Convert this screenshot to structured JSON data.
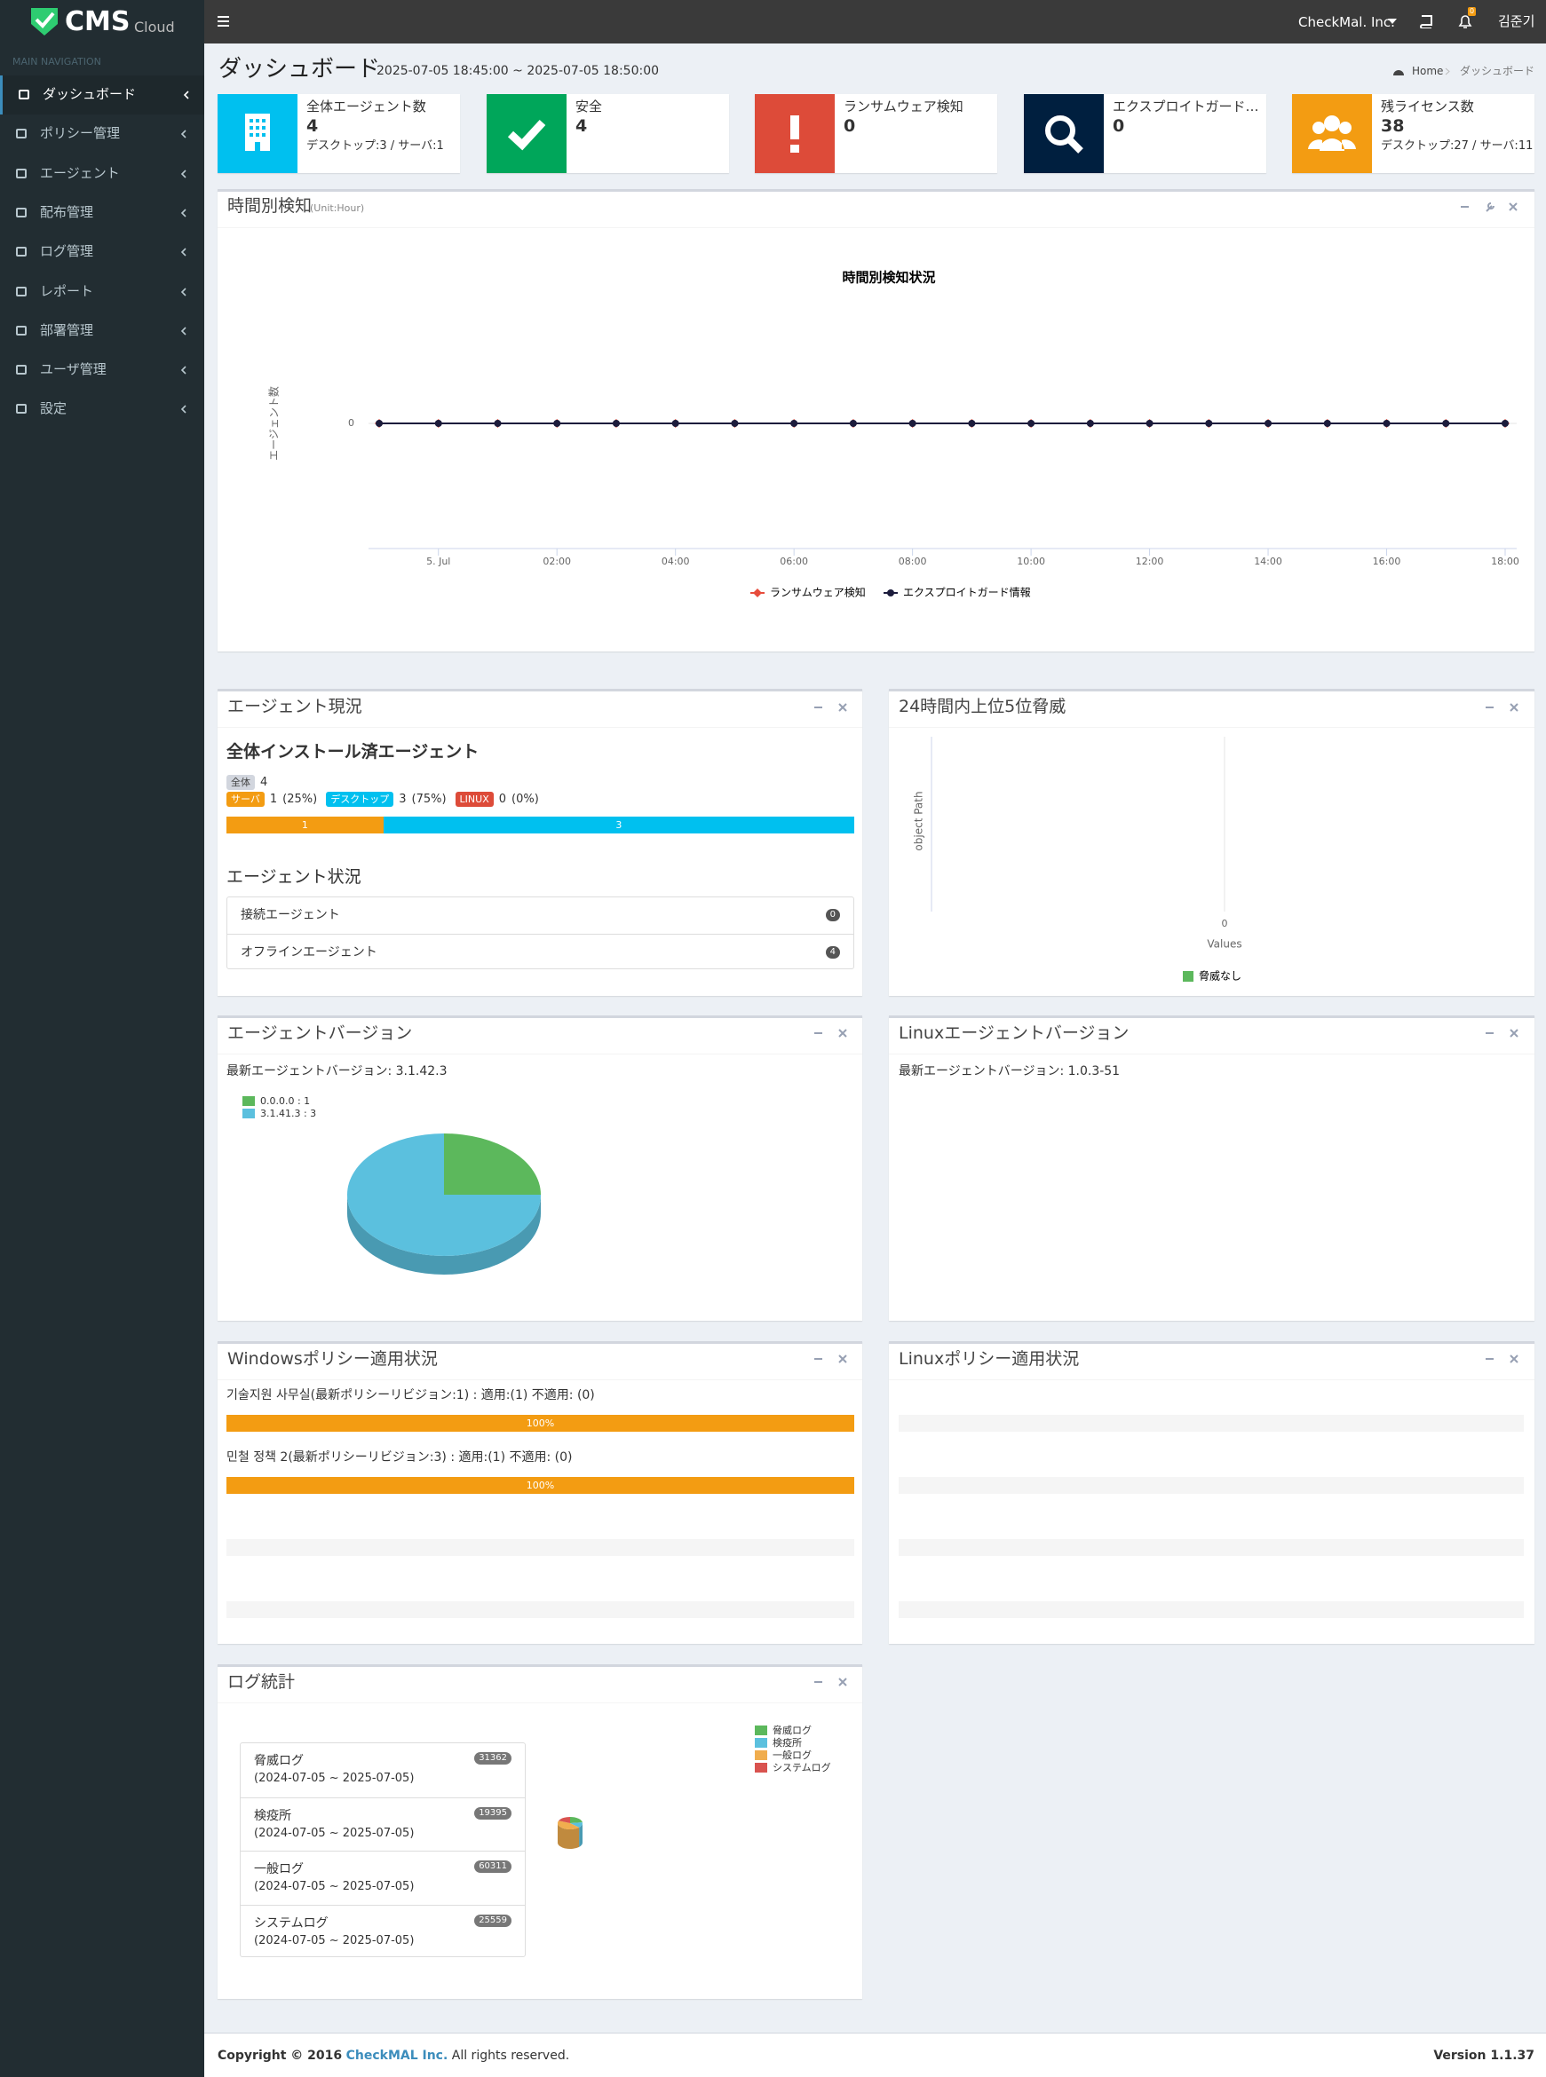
{
  "header": {
    "logo": "CMS",
    "logo_sub": "Cloud",
    "company": "CheckMal. Inc.",
    "notifications": "0",
    "user": "김준기"
  },
  "sidebar": {
    "label": "MAIN NAVIGATION",
    "items": [
      "ダッシュボード",
      "ポリシー管理",
      "エージェント",
      "配布管理",
      "ログ管理",
      "レポート",
      "部署管理",
      "ユーザ管理",
      "設定"
    ]
  },
  "page": {
    "title": "ダッシュボード",
    "period": "2025-07-05 18:45:00 ~ 2025-07-05 18:50:00",
    "breadcrumb": [
      "Home",
      "ダッシュボード"
    ]
  },
  "info_boxes": [
    {
      "label": "全体エージェント数",
      "value": 4,
      "detail": "デスクトップ:3 / サーバ:1"
    },
    {
      "label": "安全",
      "value": 4
    },
    {
      "label": "ランサムウェア検知",
      "value": 0
    },
    {
      "label": "エクスプロイトガード…",
      "value": 0
    },
    {
      "label": "残ライセンス数",
      "value": 38,
      "detail": "デスクトップ:27 / サーバ:11"
    }
  ],
  "hourly": {
    "title": "時間別検知",
    "unit": "(Unit:Hour)"
  },
  "agent_status": {
    "title": "エージェント現況",
    "subtitle": "全体インストール済エージェント",
    "total_label": "全体",
    "total": 4,
    "types": [
      {
        "label": "サーバ",
        "count": 1,
        "percent": "(25%)",
        "color": "#f39c12"
      },
      {
        "label": "デスクトップ",
        "count": 3,
        "percent": "(75%)",
        "color": "#00c0ef"
      },
      {
        "label": "LINUX",
        "count": 0,
        "percent": "(0%)",
        "color": "#dd4b39"
      }
    ],
    "status_title": "エージェント状況",
    "status": [
      {
        "label": "接続エージェント",
        "count": 0
      },
      {
        "label": "オフラインエージェント",
        "count": 4
      }
    ]
  },
  "threats": {
    "title": "24時間内上位5位脅威"
  },
  "agent_version": {
    "title": "エージェントバージョン",
    "latest": "最新エージェントバージョン: 3.1.42.3"
  },
  "linux_version": {
    "title": "Linuxエージェントバージョン",
    "latest": "最新エージェントバージョン: 1.0.3-51"
  },
  "windows_policy": {
    "title": "Windowsポリシー適用状況",
    "items": [
      {
        "text": "기술지원 사무실(最新ポリシーリビジョン:1) : 適用:(1) 不適用: (0)",
        "percent": 100,
        "label": "100%"
      },
      {
        "text": "민철 정책 2(最新ポリシーリビジョン:3) : 適用:(1) 不適用: (0)",
        "percent": 100,
        "label": "100%"
      }
    ]
  },
  "linux_policy": {
    "title": "Linuxポリシー適用状況"
  },
  "log_stats": {
    "title": "ログ統計",
    "periods": [
      "(2024-07-05 ~ 2025-07-05)",
      "(2024-07-05 ~ 2025-07-05)",
      "(2024-07-05 ~ 2025-07-05)",
      "(2024-07-05 ~ 2025-07-05)"
    ]
  },
  "footer": {
    "copyright": "Copyright © 2016",
    "company": "CheckMAL Inc.",
    "rights": "All rights reserved.",
    "version": "Version 1.1.37"
  },
  "chart_data": [
    {
      "type": "line",
      "title": "時間別検知状況",
      "y_label": "エージェント数",
      "categories": [
        null,
        "5. Jul",
        null,
        "02:00",
        null,
        "04:00",
        null,
        "06:00",
        null,
        "08:00",
        null,
        "10:00",
        null,
        "12:00",
        null,
        "14:00",
        null,
        "16:00",
        null,
        "18:00"
      ],
      "series": [
        {
          "name": "ランサムウェア検知",
          "color": "#e74c3c",
          "values": [
            0,
            0,
            0,
            0,
            0,
            0,
            0,
            0,
            0,
            0,
            0,
            0,
            0,
            0,
            0,
            0,
            0,
            0,
            0,
            0
          ]
        },
        {
          "name": "エクスプロイトガード情報",
          "color": "#1c1c3c",
          "values": [
            0,
            0,
            0,
            0,
            0,
            0,
            0,
            0,
            0,
            0,
            0,
            0,
            0,
            0,
            0,
            0,
            0,
            0,
            0,
            0
          ]
        }
      ],
      "ylim": [
        -1,
        1
      ],
      "yticks": [
        0
      ]
    },
    {
      "type": "bar",
      "orientation": "horizontal",
      "y_label": "object Path",
      "x_label": "Values",
      "categories": [],
      "series": [
        {
          "name": "脅威なし",
          "color": "#5cb85c",
          "values": []
        }
      ],
      "xlim": [
        -1,
        1
      ],
      "xticks": [
        0
      ]
    },
    {
      "type": "pie",
      "legend_labels": [
        "0.0.0.0 : 1",
        "3.1.41.3 : 3"
      ],
      "values": [
        1,
        3
      ],
      "colors": [
        "#5cb85c",
        "#5bc0de"
      ]
    },
    {
      "type": "pie",
      "categories": [
        "脅威ログ",
        "検疫所",
        "一般ログ",
        "システムログ"
      ],
      "values": [
        31362,
        19395,
        60311,
        25559
      ],
      "colors": [
        "#5cb85c",
        "#5bc0de",
        "#f0ad4e",
        "#d9534f"
      ]
    }
  ]
}
